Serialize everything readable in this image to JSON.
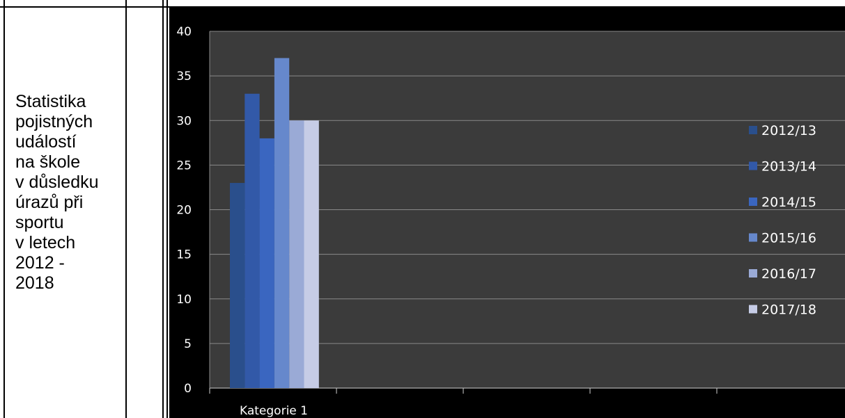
{
  "side_label": "Statistika\npojistných\nudálostí\nna škole\nv důsledku\núrazů při\nsportu\nv letech\n2012 -\n2018",
  "chart_data": {
    "type": "bar",
    "categories": [
      "Kategorie 1"
    ],
    "series": [
      {
        "name": "2012/13",
        "values": [
          23
        ],
        "color": "#2a4f8c"
      },
      {
        "name": "2013/14",
        "values": [
          33
        ],
        "color": "#3259a8"
      },
      {
        "name": "2014/15",
        "values": [
          28
        ],
        "color": "#3a66c0"
      },
      {
        "name": "2015/16",
        "values": [
          37
        ],
        "color": "#6688cc"
      },
      {
        "name": "2016/17",
        "values": [
          30
        ],
        "color": "#9aaad6"
      },
      {
        "name": "2017/18",
        "values": [
          30
        ],
        "color": "#c6cce6"
      }
    ],
    "ylim": [
      0,
      40
    ],
    "yticks": [
      0,
      5,
      10,
      15,
      20,
      25,
      30,
      35,
      40
    ],
    "grid": true,
    "legend_position": "right",
    "background": "#3b3b3b"
  }
}
